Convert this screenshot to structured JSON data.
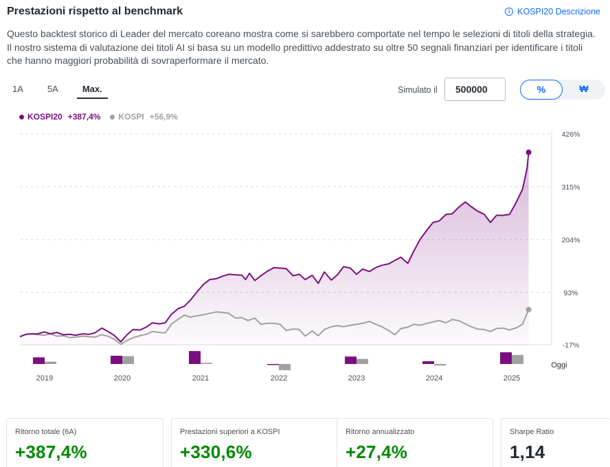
{
  "header": {
    "title": "Prestazioni rispetto al benchmark",
    "link_label": "KOSPI20 Descrizione",
    "link_icon": "info-icon"
  },
  "intro": "Questo backtest storico di Leader del mercato coreano mostra come si sarebbero comportate nel tempo le selezioni di titoli della strategia. Il nostro sistema di valutazione dei titoli AI si basa su un modello predittivo addestrato su oltre 50 segnali finanziari per identificare i titoli che hanno maggiori probabilità di sovraperformare il mercato.",
  "range_tabs": [
    {
      "label": "1A",
      "active": false
    },
    {
      "label": "5A",
      "active": false
    },
    {
      "label": "Max.",
      "active": true
    }
  ],
  "simulate": {
    "label": "Simulato il",
    "value": "500000"
  },
  "unit_toggle": [
    {
      "label": "%",
      "active": true
    },
    {
      "label": "₩",
      "active": false
    }
  ],
  "legend": [
    {
      "name": "KOSPI20",
      "value": "+387,4%",
      "color": "#7b0e7e"
    },
    {
      "name": "KOSPI",
      "value": "+56,9%",
      "color": "#a0a0a0"
    }
  ],
  "chart_data": {
    "type": "line",
    "title": "",
    "xlabel": "",
    "ylabel": "",
    "ylim": [
      -17,
      426
    ],
    "y_ticks": [
      "426%",
      "315%",
      "204%",
      "93%",
      "-17%"
    ],
    "y_tick_values": [
      426,
      315,
      204,
      93,
      -17
    ],
    "x_range": [
      2018.85,
      2025.8
    ],
    "year_labels": [
      "2019",
      "2020",
      "2021",
      "2022",
      "2023",
      "2024",
      "2025"
    ],
    "today_label": "Oggi",
    "grid": true,
    "legend_position": "top-left",
    "series": [
      {
        "name": "KOSPI20",
        "color": "#7b0e7e",
        "end_label": "+387,4%",
        "points": [
          [
            2018.85,
            0
          ],
          [
            2018.93,
            5
          ],
          [
            2019.0,
            6
          ],
          [
            2019.08,
            6
          ],
          [
            2019.17,
            10
          ],
          [
            2019.25,
            6
          ],
          [
            2019.33,
            9
          ],
          [
            2019.42,
            4
          ],
          [
            2019.5,
            5
          ],
          [
            2019.58,
            3
          ],
          [
            2019.67,
            6
          ],
          [
            2019.75,
            5
          ],
          [
            2019.83,
            8
          ],
          [
            2019.92,
            18
          ],
          [
            2020.0,
            11
          ],
          [
            2020.08,
            3
          ],
          [
            2020.17,
            -11
          ],
          [
            2020.25,
            4
          ],
          [
            2020.33,
            15
          ],
          [
            2020.42,
            14
          ],
          [
            2020.5,
            20
          ],
          [
            2020.58,
            29
          ],
          [
            2020.67,
            27
          ],
          [
            2020.75,
            29
          ],
          [
            2020.83,
            47
          ],
          [
            2020.92,
            59
          ],
          [
            2021.0,
            64
          ],
          [
            2021.08,
            77
          ],
          [
            2021.17,
            95
          ],
          [
            2021.25,
            110
          ],
          [
            2021.33,
            120
          ],
          [
            2021.42,
            122
          ],
          [
            2021.5,
            127
          ],
          [
            2021.58,
            131
          ],
          [
            2021.67,
            130
          ],
          [
            2021.75,
            129
          ],
          [
            2021.8,
            120
          ],
          [
            2021.85,
            133
          ],
          [
            2021.92,
            118
          ],
          [
            2022.0,
            128
          ],
          [
            2022.08,
            137
          ],
          [
            2022.17,
            145
          ],
          [
            2022.25,
            144
          ],
          [
            2022.33,
            143
          ],
          [
            2022.42,
            128
          ],
          [
            2022.5,
            131
          ],
          [
            2022.58,
            120
          ],
          [
            2022.67,
            129
          ],
          [
            2022.75,
            112
          ],
          [
            2022.83,
            136
          ],
          [
            2022.92,
            119
          ],
          [
            2023.0,
            130
          ],
          [
            2023.08,
            147
          ],
          [
            2023.17,
            144
          ],
          [
            2023.25,
            131
          ],
          [
            2023.33,
            142
          ],
          [
            2023.42,
            137
          ],
          [
            2023.5,
            145
          ],
          [
            2023.58,
            150
          ],
          [
            2023.67,
            153
          ],
          [
            2023.75,
            160
          ],
          [
            2023.83,
            167
          ],
          [
            2023.92,
            154
          ],
          [
            2024.0,
            180
          ],
          [
            2024.08,
            204
          ],
          [
            2024.17,
            224
          ],
          [
            2024.25,
            240
          ],
          [
            2024.33,
            243
          ],
          [
            2024.42,
            257
          ],
          [
            2024.5,
            258
          ],
          [
            2024.58,
            271
          ],
          [
            2024.67,
            283
          ],
          [
            2024.75,
            273
          ],
          [
            2024.83,
            264
          ],
          [
            2024.92,
            257
          ],
          [
            2025.0,
            240
          ],
          [
            2025.08,
            255
          ],
          [
            2025.17,
            255
          ],
          [
            2025.25,
            257
          ],
          [
            2025.33,
            280
          ],
          [
            2025.42,
            310
          ],
          [
            2025.48,
            355
          ],
          [
            2025.5,
            387.4
          ]
        ]
      },
      {
        "name": "KOSPI",
        "color": "#a0a0a0",
        "end_label": "+56,9%",
        "points": [
          [
            2018.85,
            0
          ],
          [
            2018.93,
            5
          ],
          [
            2019.0,
            6
          ],
          [
            2019.08,
            4
          ],
          [
            2019.17,
            3
          ],
          [
            2019.25,
            6
          ],
          [
            2019.33,
            1
          ],
          [
            2019.42,
            2
          ],
          [
            2019.5,
            -2
          ],
          [
            2019.58,
            -1
          ],
          [
            2019.67,
            1
          ],
          [
            2019.75,
            0
          ],
          [
            2019.83,
            -1
          ],
          [
            2019.92,
            4
          ],
          [
            2020.0,
            1
          ],
          [
            2020.08,
            -5
          ],
          [
            2020.17,
            -16
          ],
          [
            2020.25,
            -8
          ],
          [
            2020.33,
            -2
          ],
          [
            2020.42,
            2
          ],
          [
            2020.5,
            5
          ],
          [
            2020.58,
            11
          ],
          [
            2020.67,
            9
          ],
          [
            2020.75,
            8
          ],
          [
            2020.83,
            26
          ],
          [
            2020.92,
            37
          ],
          [
            2021.0,
            45
          ],
          [
            2021.08,
            41
          ],
          [
            2021.17,
            44
          ],
          [
            2021.25,
            46
          ],
          [
            2021.33,
            49
          ],
          [
            2021.42,
            52
          ],
          [
            2021.5,
            51
          ],
          [
            2021.58,
            49
          ],
          [
            2021.67,
            39
          ],
          [
            2021.75,
            40
          ],
          [
            2021.83,
            34
          ],
          [
            2021.92,
            39
          ],
          [
            2022.0,
            26
          ],
          [
            2022.08,
            28
          ],
          [
            2022.17,
            28
          ],
          [
            2022.25,
            26
          ],
          [
            2022.33,
            13
          ],
          [
            2022.42,
            16
          ],
          [
            2022.5,
            15
          ],
          [
            2022.58,
            1
          ],
          [
            2022.67,
            12
          ],
          [
            2022.75,
            2
          ],
          [
            2022.83,
            15
          ],
          [
            2022.92,
            21
          ],
          [
            2023.0,
            23
          ],
          [
            2023.08,
            21
          ],
          [
            2023.17,
            24
          ],
          [
            2023.25,
            26
          ],
          [
            2023.33,
            28
          ],
          [
            2023.42,
            32
          ],
          [
            2023.5,
            26
          ],
          [
            2023.58,
            21
          ],
          [
            2023.67,
            13
          ],
          [
            2023.75,
            4
          ],
          [
            2023.83,
            17
          ],
          [
            2023.92,
            20
          ],
          [
            2024.0,
            26
          ],
          [
            2024.08,
            24
          ],
          [
            2024.17,
            28
          ],
          [
            2024.25,
            31
          ],
          [
            2024.33,
            34
          ],
          [
            2024.42,
            29
          ],
          [
            2024.5,
            36
          ],
          [
            2024.58,
            34
          ],
          [
            2024.67,
            27
          ],
          [
            2024.75,
            21
          ],
          [
            2024.83,
            16
          ],
          [
            2024.92,
            15
          ],
          [
            2025.0,
            11
          ],
          [
            2025.08,
            17
          ],
          [
            2025.17,
            18
          ],
          [
            2025.25,
            14
          ],
          [
            2025.33,
            18
          ],
          [
            2025.42,
            26
          ],
          [
            2025.5,
            56.9
          ]
        ]
      }
    ],
    "annual_returns": {
      "categories": [
        "2019",
        "2020",
        "2021",
        "2022",
        "2023",
        "2024",
        "2025"
      ],
      "series": [
        {
          "name": "KOSPI20",
          "color": "#7b0e7e",
          "values": [
            17,
            21,
            33,
            -2,
            19,
            7,
            30
          ]
        },
        {
          "name": "KOSPI",
          "color": "#a0a0a0",
          "values": [
            6,
            20,
            3,
            -16,
            13,
            -4,
            23
          ]
        }
      ]
    }
  },
  "stats": [
    {
      "label": "Ritorno totale (6A)",
      "value": "+387,4%",
      "positive": true
    },
    {
      "label": "Prestazioni superiori a KOSPI",
      "value": "+330,6%",
      "positive": true
    },
    {
      "label": "Ritorno annualizzato",
      "value": "+27,4%",
      "positive": true
    },
    {
      "label": "Sharpe Ratio",
      "value": "1,14",
      "positive": false
    }
  ]
}
